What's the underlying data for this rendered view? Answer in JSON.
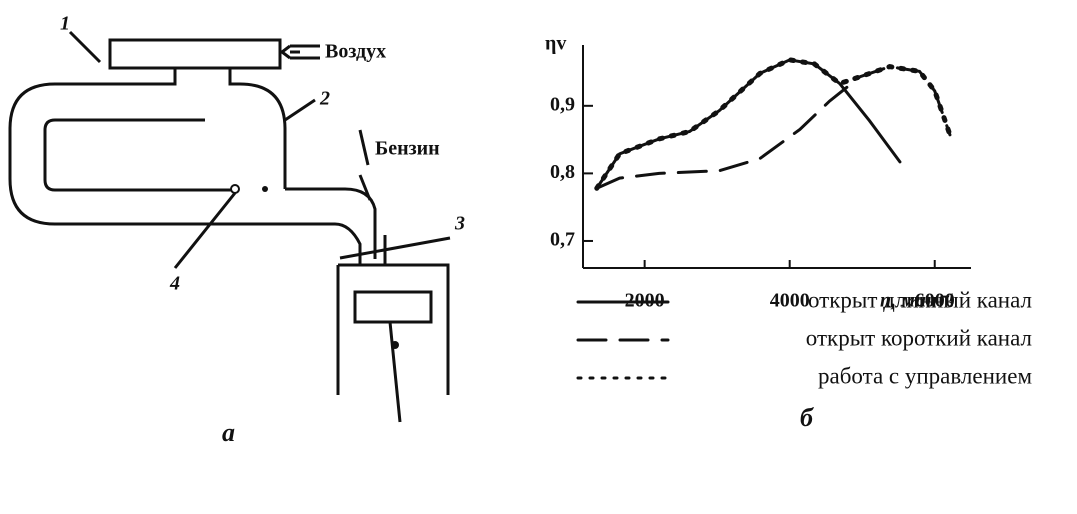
{
  "diagram": {
    "labels": [
      "1",
      "2",
      "3",
      "4"
    ],
    "air": "Воздух",
    "fuel": "Бензин",
    "caption": "а"
  },
  "chart_data": {
    "type": "line",
    "caption": "б",
    "ylabel": "ηv",
    "xlabel": "n, мин⁻¹",
    "xlim": [
      1150,
      6500
    ],
    "xticks": [
      2000,
      4000,
      6000
    ],
    "ylim": [
      0.66,
      0.99
    ],
    "yticks": [
      {
        "value": 0.7,
        "label": "0,7"
      },
      {
        "value": 0.8,
        "label": "0,8"
      },
      {
        "value": 0.9,
        "label": "0,9"
      }
    ],
    "series": [
      {
        "name": "открыт длинный канал",
        "style": "solid",
        "color": "#111",
        "x": [
          1340,
          1655,
          2200,
          2620,
          3030,
          3590,
          4000,
          4340,
          4690,
          5100,
          5520
        ],
        "values": [
          0.778,
          0.829,
          0.851,
          0.862,
          0.893,
          0.948,
          0.968,
          0.962,
          0.933,
          0.878,
          0.817
        ]
      },
      {
        "name": "открыт короткий канал",
        "style": "dashed",
        "color": "#111",
        "x": [
          1340,
          1655,
          2200,
          3030,
          3590,
          4140,
          4550,
          4970,
          5380,
          5790,
          6000,
          6210
        ],
        "values": [
          0.778,
          0.793,
          0.8,
          0.804,
          0.822,
          0.865,
          0.907,
          0.943,
          0.958,
          0.951,
          0.922,
          0.857
        ]
      },
      {
        "name": "работа с управлением",
        "style": "dotted",
        "color": "#111",
        "x": [
          1340,
          1655,
          2200,
          2620,
          3030,
          3590,
          4000,
          4340,
          4690,
          4970,
          5380,
          5790,
          6000,
          6210
        ],
        "values": [
          0.778,
          0.829,
          0.851,
          0.862,
          0.893,
          0.948,
          0.968,
          0.962,
          0.933,
          0.943,
          0.958,
          0.951,
          0.922,
          0.857
        ]
      }
    ]
  }
}
